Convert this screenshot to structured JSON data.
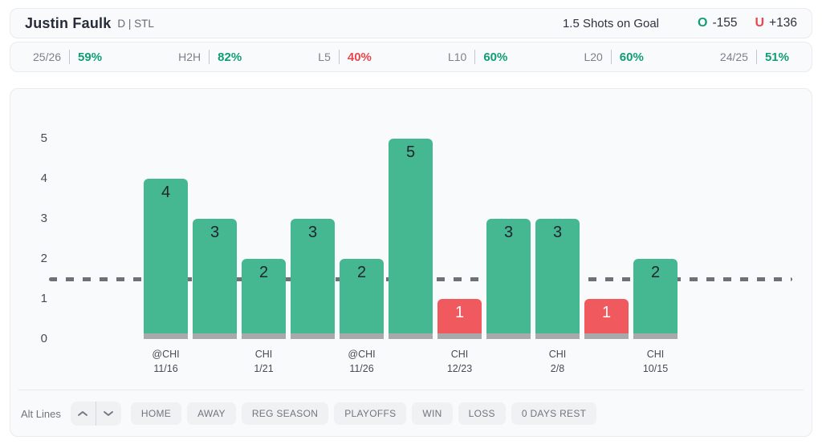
{
  "header": {
    "player_name": "Justin Faulk",
    "position_team": "D | STL",
    "prop_line": "1.5 Shots on Goal",
    "over_symbol": "O",
    "over_odds": "-155",
    "under_symbol": "U",
    "under_odds": "+136"
  },
  "splits": [
    {
      "label": "25/26",
      "value": "59%",
      "trend": "positive"
    },
    {
      "label": "H2H",
      "value": "82%",
      "trend": "positive"
    },
    {
      "label": "L5",
      "value": "40%",
      "trend": "negative"
    },
    {
      "label": "L10",
      "value": "60%",
      "trend": "positive"
    },
    {
      "label": "L20",
      "value": "60%",
      "trend": "positive"
    },
    {
      "label": "24/25",
      "value": "51%",
      "trend": "positive"
    }
  ],
  "chart_data": {
    "type": "bar",
    "title": "",
    "xlabel": "",
    "ylabel": "",
    "ylim": [
      0,
      5
    ],
    "yticks": [
      0,
      1,
      2,
      3,
      4,
      5
    ],
    "grid": false,
    "threshold_line": 1.5,
    "bars": [
      {
        "value": 4,
        "result": "over",
        "opponent": "@CHI",
        "date": "11/16"
      },
      {
        "value": 3,
        "result": "over",
        "opponent": "",
        "date": ""
      },
      {
        "value": 2,
        "result": "over",
        "opponent": "CHI",
        "date": "1/21"
      },
      {
        "value": 3,
        "result": "over",
        "opponent": "",
        "date": ""
      },
      {
        "value": 2,
        "result": "over",
        "opponent": "@CHI",
        "date": "11/26"
      },
      {
        "value": 5,
        "result": "over",
        "opponent": "",
        "date": ""
      },
      {
        "value": 1,
        "result": "under",
        "opponent": "CHI",
        "date": "12/23"
      },
      {
        "value": 3,
        "result": "over",
        "opponent": "",
        "date": ""
      },
      {
        "value": 3,
        "result": "over",
        "opponent": "CHI",
        "date": "2/8"
      },
      {
        "value": 1,
        "result": "under",
        "opponent": "",
        "date": ""
      },
      {
        "value": 2,
        "result": "over",
        "opponent": "CHI",
        "date": "10/15"
      }
    ]
  },
  "controls": {
    "alt_lines_label": "Alt Lines",
    "stepper_icons": [
      "chevron-up-icon",
      "chevron-down-icon"
    ],
    "filters": [
      "HOME",
      "AWAY",
      "REG SEASON",
      "PLAYOFFS",
      "WIN",
      "LOSS",
      "0 DAYS REST"
    ]
  },
  "colors": {
    "over_green": "#149e74",
    "under_red": "#e8474d",
    "bar_over": "#45b791",
    "bar_under": "#f05a5f",
    "bar_base_gray": "#a8a9ab",
    "threshold_line_gray": "#6c7077",
    "card_background": "#f9fafb",
    "card_border": "#e9ebee"
  }
}
